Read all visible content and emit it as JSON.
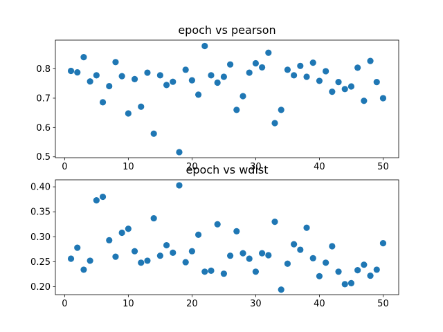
{
  "chart_data": [
    {
      "type": "scatter",
      "title": "epoch vs pearson",
      "xlabel": "",
      "ylabel": "",
      "xlim": [
        -1.45,
        52.45
      ],
      "ylim": [
        0.497,
        0.898
      ],
      "xticks": [
        0,
        10,
        20,
        30,
        40,
        50
      ],
      "yticks": [
        0.5,
        0.6,
        0.7,
        0.8
      ],
      "ytick_labels": [
        "0.5",
        "0.6",
        "0.7",
        "0.8"
      ],
      "marker_color": "#1f77b4",
      "x": [
        1,
        2,
        3,
        4,
        5,
        6,
        7,
        8,
        9,
        10,
        11,
        12,
        13,
        14,
        15,
        16,
        17,
        18,
        19,
        20,
        21,
        22,
        23,
        24,
        25,
        26,
        27,
        28,
        29,
        30,
        31,
        32,
        33,
        34,
        35,
        36,
        37,
        38,
        39,
        40,
        41,
        42,
        43,
        44,
        45,
        46,
        47,
        48,
        49,
        50
      ],
      "y": [
        0.793,
        0.788,
        0.84,
        0.757,
        0.778,
        0.686,
        0.741,
        0.823,
        0.775,
        0.648,
        0.765,
        0.671,
        0.787,
        0.579,
        0.778,
        0.745,
        0.756,
        0.516,
        0.797,
        0.761,
        0.712,
        0.878,
        0.778,
        0.753,
        0.773,
        0.815,
        0.66,
        0.707,
        0.787,
        0.819,
        0.805,
        0.855,
        0.615,
        0.66,
        0.797,
        0.778,
        0.81,
        0.773,
        0.821,
        0.759,
        0.792,
        0.722,
        0.755,
        0.731,
        0.74,
        0.804,
        0.691,
        0.827,
        0.755,
        0.7
      ]
    },
    {
      "type": "scatter",
      "title": "epoch vs wdist",
      "xlabel": "",
      "ylabel": "",
      "xlim": [
        -1.45,
        52.45
      ],
      "ylim": [
        0.184,
        0.414
      ],
      "xticks": [
        0,
        10,
        20,
        30,
        40,
        50
      ],
      "yticks": [
        0.2,
        0.25,
        0.3,
        0.35,
        0.4
      ],
      "ytick_labels": [
        "0.20",
        "0.25",
        "0.30",
        "0.35",
        "0.40"
      ],
      "marker_color": "#1f77b4",
      "x": [
        1,
        2,
        3,
        4,
        5,
        6,
        7,
        8,
        9,
        10,
        11,
        12,
        13,
        14,
        15,
        16,
        17,
        18,
        19,
        20,
        21,
        22,
        23,
        24,
        25,
        26,
        27,
        28,
        29,
        30,
        31,
        32,
        33,
        34,
        35,
        36,
        37,
        38,
        39,
        40,
        41,
        42,
        43,
        44,
        45,
        46,
        47,
        48,
        49,
        50
      ],
      "y": [
        0.256,
        0.278,
        0.234,
        0.252,
        0.373,
        0.38,
        0.293,
        0.26,
        0.308,
        0.316,
        0.271,
        0.248,
        0.252,
        0.337,
        0.262,
        0.283,
        0.268,
        0.403,
        0.249,
        0.271,
        0.304,
        0.23,
        0.232,
        0.325,
        0.226,
        0.262,
        0.311,
        0.267,
        0.256,
        0.23,
        0.267,
        0.263,
        0.33,
        0.194,
        0.246,
        0.285,
        0.274,
        0.318,
        0.257,
        0.221,
        0.248,
        0.281,
        0.23,
        0.205,
        0.207,
        0.233,
        0.244,
        0.222,
        0.234,
        0.287
      ]
    }
  ]
}
